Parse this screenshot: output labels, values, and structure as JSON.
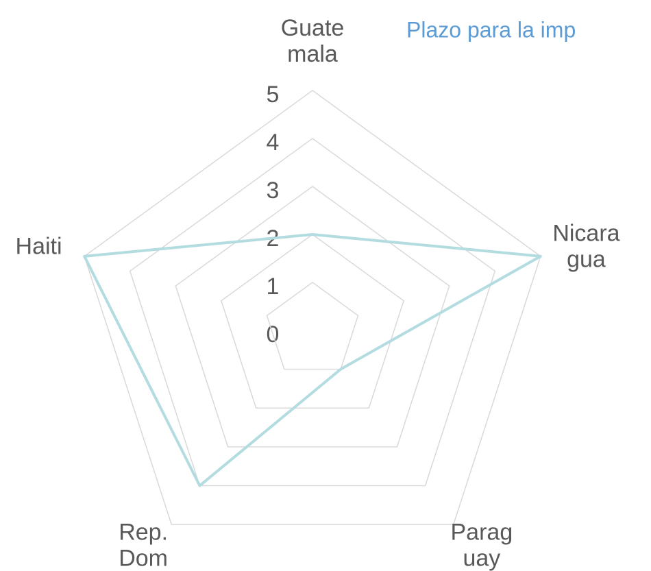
{
  "chart_data": {
    "type": "radar",
    "title": "Plazo para la imp",
    "categories": [
      "Guate mala",
      "Nicara gua",
      "Parag uay",
      "Rep. Dom",
      "Haiti"
    ],
    "series": [
      {
        "color": "#b3dce1",
        "values": [
          2,
          5,
          1,
          4,
          5
        ]
      }
    ],
    "ylim": [
      0,
      5
    ],
    "yticks": [
      0,
      1,
      2,
      3,
      4,
      5
    ],
    "grid": true
  }
}
